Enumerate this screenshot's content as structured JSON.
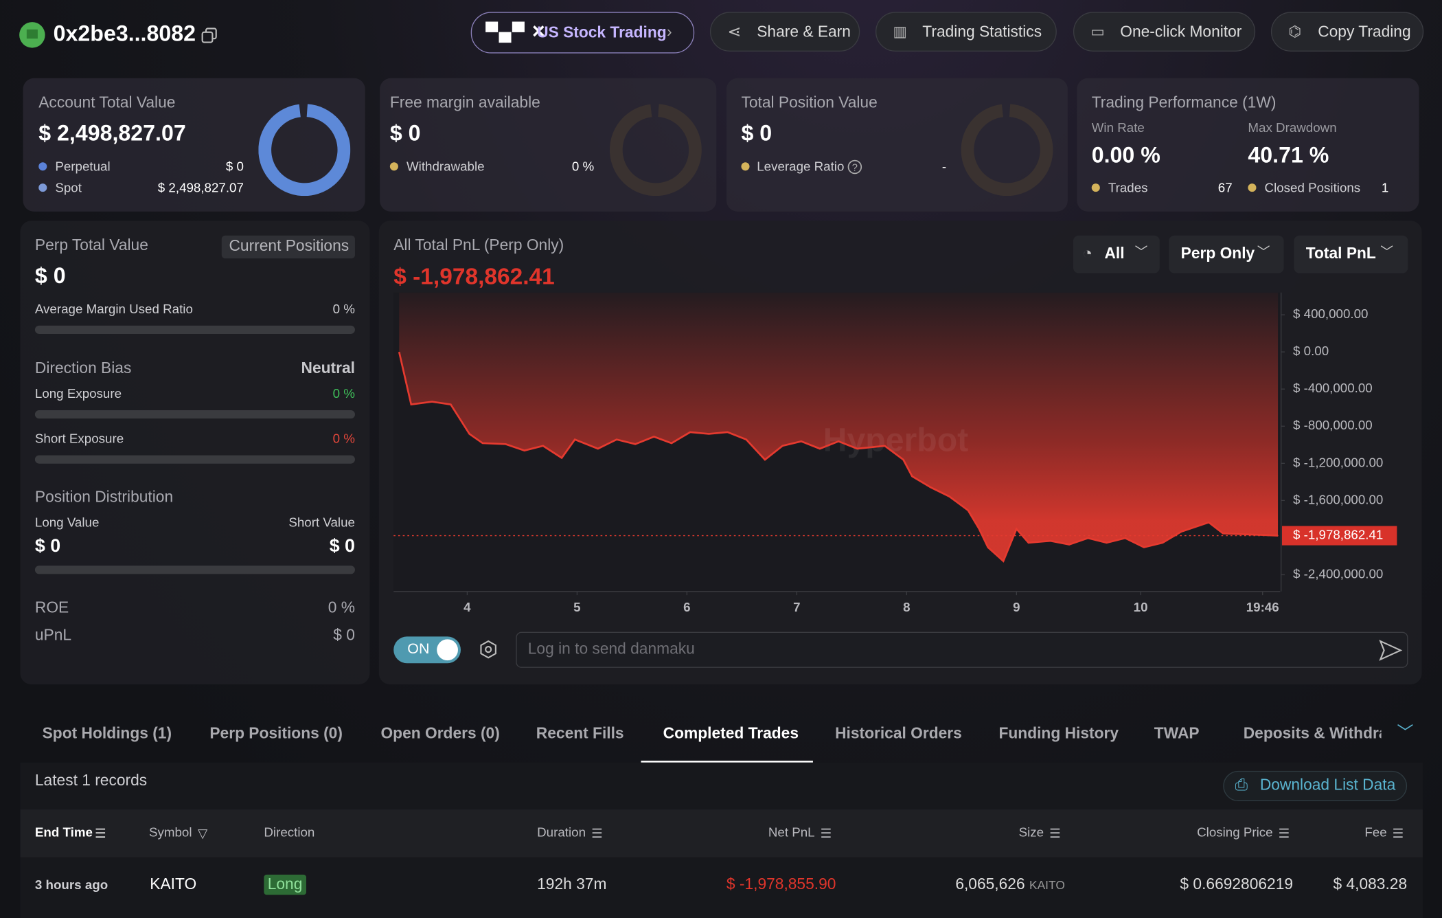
{
  "header": {
    "address": "0x2be3...8082",
    "buttons": [
      "US Stock Trading",
      "Share & Earn",
      "Trading Statistics",
      "One-click Monitor",
      "Copy Trading"
    ]
  },
  "account": {
    "title": "Account Total Value",
    "value": "$ 2,498,827.07",
    "perpetual_label": "Perpetual",
    "perpetual_value": "$ 0",
    "spot_label": "Spot",
    "spot_value": "$ 2,498,827.07"
  },
  "free_margin": {
    "title": "Free margin available",
    "value": "$ 0",
    "withdrawable_label": "Withdrawable",
    "withdrawable_value": "0 %"
  },
  "position_value": {
    "title": "Total Position Value",
    "value": "$ 0",
    "leverage_label": "Leverage Ratio",
    "leverage_value": "-"
  },
  "performance": {
    "title": "Trading Performance (1W)",
    "win_rate_label": "Win Rate",
    "win_rate": "0.00 %",
    "max_drawdown_label": "Max Drawdown",
    "max_drawdown": "40.71 %",
    "trades_label": "Trades",
    "trades": "67",
    "closed_label": "Closed Positions",
    "closed": "1"
  },
  "perp": {
    "title": "Perp Total Value",
    "chip": "Current Positions",
    "value": "$ 0",
    "margin_label": "Average Margin Used Ratio",
    "margin_value": "0 %",
    "bias_label": "Direction Bias",
    "bias_value": "Neutral",
    "long_label": "Long Exposure",
    "long_value": "0 %",
    "short_label": "Short Exposure",
    "short_value": "0 %",
    "dist_label": "Position Distribution",
    "long_value_label": "Long Value",
    "short_value_label": "Short Value",
    "long_amount": "$ 0",
    "short_amount": "$ 0",
    "roe_label": "ROE",
    "roe": "0 %",
    "upnl_label": "uPnL",
    "upnl": "$ 0"
  },
  "pnl_chart": {
    "type": "area",
    "title": "All Total PnL (Perp Only)",
    "current_label": "$ -1,978,862.41",
    "current": -1978862.41,
    "watermark": "Hyperbot",
    "filters": [
      "All",
      "Perp Only",
      "Total PnL"
    ],
    "color": "#e53a2f",
    "x": [
      3.38,
      3.49,
      3.68,
      3.85,
      3.93,
      4.02,
      4.14,
      4.35,
      4.52,
      4.69,
      4.86,
      4.98,
      5.19,
      5.36,
      5.53,
      5.7,
      5.86,
      6.03,
      6.2,
      6.37,
      6.54,
      6.71,
      6.87,
      7.04,
      7.21,
      7.38,
      7.55,
      7.8,
      7.97,
      8.05,
      8.22,
      8.39,
      8.56,
      8.66,
      8.74,
      8.88,
      9.0,
      9.11,
      9.31,
      9.48,
      9.65,
      9.82,
      9.99,
      10.16,
      10.33,
      10.5,
      10.75,
      10.88,
      11.38
    ],
    "values": [
      0,
      -566000,
      -536000,
      -566000,
      -715000,
      -883000,
      -983000,
      -993000,
      -1062000,
      -1012000,
      -1141000,
      -943000,
      -1042000,
      -943000,
      -993000,
      -913000,
      -983000,
      -864000,
      -883000,
      -864000,
      -943000,
      -1161000,
      -1012000,
      -963000,
      -1042000,
      -963000,
      -1042000,
      -1012000,
      -1161000,
      -1340000,
      -1459000,
      -1558000,
      -1707000,
      -1906000,
      -2104000,
      -2253000,
      -1906000,
      -2055000,
      -2035000,
      -2075000,
      -2005000,
      -2055000,
      -2005000,
      -2104000,
      -2055000,
      -1936000,
      -1836000,
      -1955000,
      -1978862.41
    ],
    "xlim": [
      3.33,
      11.4
    ],
    "xticks": [
      4,
      5,
      6,
      7,
      8,
      9,
      {
        "value": 10.13,
        "label": "10"
      },
      {
        "value": 11.24,
        "label": "19:46"
      }
    ],
    "ylim": [
      -2580000,
      640000
    ],
    "yticks": [
      {
        "value": 400000,
        "label": "$ 400,000.00"
      },
      {
        "value": 0,
        "label": "$ 0.00"
      },
      {
        "value": -400000,
        "label": "$ -400,000.00"
      },
      {
        "value": -800000,
        "label": "$ -800,000.00"
      },
      {
        "value": -1200000,
        "label": "$ -1,200,000.00"
      },
      {
        "value": -1600000,
        "label": "$ -1,600,000.00"
      },
      {
        "value": -2400000,
        "label": "$ -2,400,000.00"
      }
    ]
  },
  "danmaku": {
    "toggle": "ON",
    "placeholder": "Log in to send danmaku"
  },
  "tabs": {
    "items": [
      "Spot Holdings (1)",
      "Perp Positions (0)",
      "Open Orders (0)",
      "Recent Fills",
      "Completed Trades",
      "Historical Orders",
      "Funding History",
      "TWAP",
      "Deposits & Withdraw"
    ],
    "active": "Completed Trades"
  },
  "table": {
    "records": "Latest 1 records",
    "download": "Download List Data",
    "columns": [
      "End Time",
      "Symbol",
      "Direction",
      "Duration",
      "Net PnL",
      "Size",
      "Closing Price",
      "Fee"
    ],
    "rows": [
      {
        "end_time": "3 hours ago",
        "symbol": "KAITO",
        "direction": "Long",
        "duration": "192h 37m",
        "net_pnl": "$ -1,978,855.90",
        "size": "6,065,626",
        "size_unit": "KAITO",
        "closing_price": "$ 0.6692806219",
        "fee": "$ 4,083.28"
      }
    ]
  }
}
